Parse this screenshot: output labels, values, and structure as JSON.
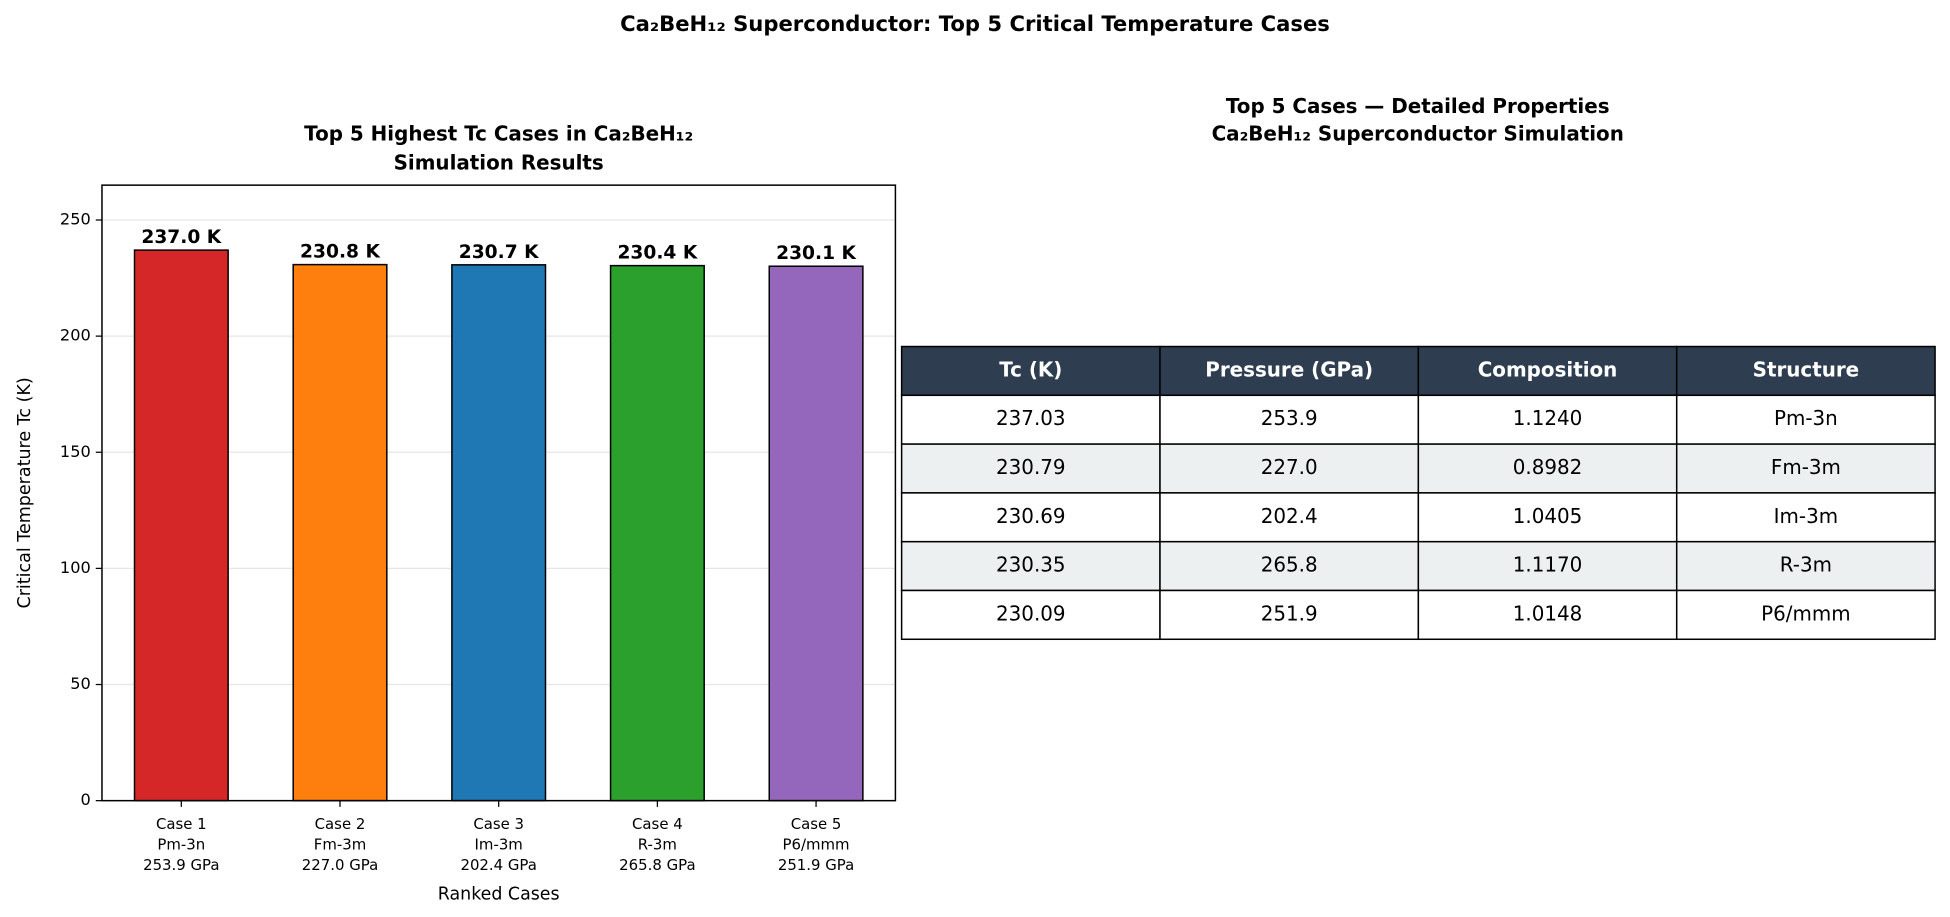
{
  "title": "Ca₂BeH₁₂ Superconductor: Top 5 Critical Temperature Cases",
  "chart_data": {
    "type": "bar",
    "title": [
      "Top 5 Highest Tc Cases in Ca₂BeH₁₂",
      "Simulation Results"
    ],
    "x_label": "Ranked Cases",
    "y_label": "Critical Temperature Tc (K)",
    "categories": [
      [
        "Case 1",
        "Pm-3n",
        "253.9 GPa"
      ],
      [
        "Case 2",
        "Fm-3m",
        "227.0 GPa"
      ],
      [
        "Case 3",
        "Im-3m",
        "202.4 GPa"
      ],
      [
        "Case 4",
        "R-3m",
        "265.8 GPa"
      ],
      [
        "Case 5",
        "P6/mmm",
        "251.9 GPa"
      ]
    ],
    "values": [
      237.03,
      230.79,
      230.69,
      230.35,
      230.09
    ],
    "value_labels": [
      "237.0 K",
      "230.8 K",
      "230.7 K",
      "230.4 K",
      "230.1 K"
    ],
    "colors": [
      "#d62728",
      "#ff7f0e",
      "#1f77b4",
      "#2ca02c",
      "#9467bd"
    ],
    "ylim": [
      0,
      265
    ],
    "yticks": [
      0,
      50,
      100,
      150,
      200,
      250
    ],
    "grid": true
  },
  "table": {
    "title": [
      "Top 5 Cases — Detailed Properties",
      "Ca₂BeH₁₂ Superconductor Simulation"
    ],
    "columns": [
      "Tc (K)",
      "Pressure (GPa)",
      "Composition",
      "Structure"
    ],
    "rows": [
      [
        "237.03",
        "253.9",
        "1.1240",
        "Pm-3n"
      ],
      [
        "230.79",
        "227.0",
        "0.8982",
        "Fm-3m"
      ],
      [
        "230.69",
        "202.4",
        "1.0405",
        "Im-3m"
      ],
      [
        "230.35",
        "265.8",
        "1.1170",
        "R-3m"
      ],
      [
        "230.09",
        "251.9",
        "1.0148",
        "P6/mmm"
      ]
    ]
  }
}
